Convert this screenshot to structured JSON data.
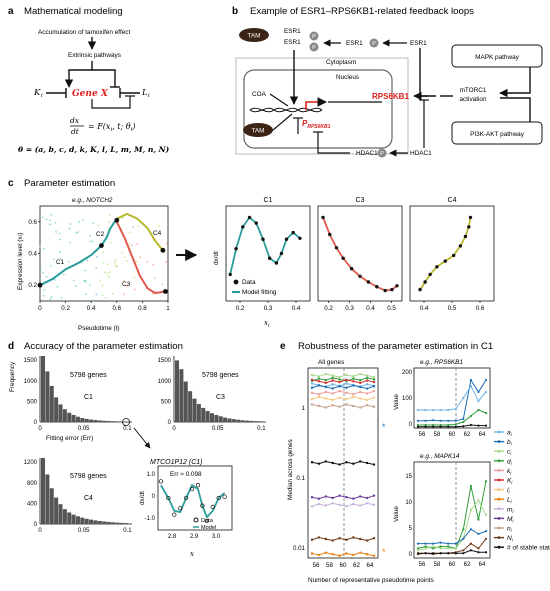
{
  "panels": {
    "a": {
      "letter": "a",
      "title": "Mathematical modeling",
      "top_label": "Accumulation of tamoxifen effect",
      "extrinsic": "Extrinsic pathways",
      "k_left": "K",
      "k_left_sub": "i",
      "l_right": "L",
      "l_right_sub": "i",
      "gene": "Gene X",
      "eq_lhs_num": "dx",
      "eq_lhs_den": "dt",
      "eq_rhs": "= F(x",
      "eq_rhs2": ", t; θ",
      "eq_rhs3": ")",
      "theta_line": "θ = (a, b, c, d, k, K, l, L, m, M, n, N)"
    },
    "b": {
      "letter": "b",
      "title": "Example of ESR1–RPS6KB1-related feedback loops",
      "tam": "TAM",
      "esr1": "ESR1",
      "p": "P",
      "cytoplasm": "Cytoplasm",
      "nucleus": "Nucleus",
      "coa": "COA",
      "prps6kb1": "P",
      "prps6kb1_sub": "RPS6KB1",
      "rps6kb1": "RPS6KB1",
      "hdac1": "HDAC1",
      "mapk": "MAPK pathway",
      "mtorc1a": "mTORC1",
      "mtorc1b": "activation",
      "pi3k": "PI3K-AKT pathway"
    },
    "c": {
      "letter": "c",
      "title": "Parameter estimation",
      "eg": "e.g., NOTCH2",
      "ylabel": "Expression level (x",
      "ylabel_sub": "i",
      "ylabel_end": ")",
      "xlabel": "Pseudotime (t)",
      "seg": [
        "C1",
        "C2",
        "C3",
        "C4"
      ],
      "xticks": [
        "0",
        "0.2",
        "0.4",
        "0.6",
        "0.8",
        "1"
      ],
      "yticks": [
        "0.2",
        "0.4",
        "0.6"
      ],
      "sub_titles": [
        "C1",
        "C3",
        "C4"
      ],
      "sub_ylabel": "dx/dt",
      "sub_xlabel": "x",
      "sub_xlabel_sub": "i",
      "c1_xticks": [
        "0.2",
        "0.3",
        "0.4"
      ],
      "c3_xticks": [
        "0.2",
        "0.3",
        "0.4",
        "0.5"
      ],
      "c4_xticks": [
        "0.4",
        "0.5",
        "0.6"
      ],
      "legend": [
        "Data",
        "Model fitting"
      ]
    },
    "d": {
      "letter": "d",
      "title": "Accuracy of the parameter estimation",
      "ylabel": "Frequency",
      "xlabel": "Fitting error (Err)",
      "n_genes": "5798 genes",
      "hist_titles": [
        "C1",
        "C3",
        "C4"
      ],
      "c1_yticks": [
        "0",
        "500",
        "1000",
        "1500"
      ],
      "c3_yticks": [
        "0",
        "500",
        "1000",
        "1500"
      ],
      "c4_yticks": [
        "0",
        "400",
        "800",
        "1200"
      ],
      "xticks": [
        "0",
        "0.05",
        "0.1"
      ],
      "inset_title": "MTCO1P12 (C1)",
      "inset_err": "Err ≈ 0.098",
      "inset_yticks": [
        "1.0",
        "0",
        "-1.0"
      ],
      "inset_xticks": [
        "2.8",
        "2.9",
        "3.0"
      ],
      "inset_legend": [
        "Data",
        "Model"
      ]
    },
    "e": {
      "letter": "e",
      "title": "Robustness of the parameter estimation in C1",
      "all_genes": "All genes",
      "ylabel": "Median across genes",
      "xlabel": "Number of representative pseudotime points",
      "yticks": [
        "1",
        "0.1",
        "0.01"
      ],
      "xticks": [
        "56",
        "58",
        "60",
        "62",
        "64"
      ],
      "eg1": "e.g., RPS6KB1",
      "eg2": "e.g., MAPK14",
      "value": "Value",
      "v1_yticks": [
        "0",
        "100",
        "200"
      ],
      "v2_yticks": [
        "0",
        "5",
        "10",
        "15"
      ],
      "legend": [
        "a",
        "b",
        "c",
        "d",
        "k",
        "K",
        "l",
        "L",
        "m",
        "M",
        "n",
        "N",
        "# of stable states"
      ],
      "legend_colors": [
        "#6fb6e6",
        "#1f6fb5",
        "#a8d98a",
        "#2f9e3a",
        "#f39c9b",
        "#d62a28",
        "#f7c97e",
        "#e87f0c",
        "#c6b0dc",
        "#6b3a9a",
        "#c9a38c",
        "#6b3b1a",
        "#111111"
      ]
    }
  },
  "chart_data": [
    {
      "type": "histogram",
      "title": "C1",
      "xlim": [
        0,
        0.1
      ],
      "ylim": [
        0,
        1500
      ],
      "bins": [
        1500,
        1150,
        820,
        560,
        400,
        290,
        210,
        160,
        120,
        90,
        70,
        55,
        45,
        36,
        28,
        22,
        18,
        14,
        11,
        9
      ],
      "xlabel": "Fitting error (Err)",
      "ylabel": "Frequency"
    },
    {
      "type": "histogram",
      "title": "C3",
      "xlim": [
        0,
        0.1
      ],
      "ylim": [
        0,
        1500
      ],
      "bins": [
        1400,
        1200,
        920,
        700,
        530,
        410,
        320,
        250,
        200,
        160,
        130,
        100,
        80,
        65,
        52,
        40,
        32,
        25,
        20,
        16
      ]
    },
    {
      "type": "histogram",
      "title": "C4",
      "xlim": [
        0,
        0.1
      ],
      "ylim": [
        0,
        1200
      ],
      "bins": [
        1250,
        900,
        650,
        480,
        360,
        270,
        210,
        170,
        140,
        115,
        95,
        80,
        66,
        55,
        46,
        38,
        31,
        25,
        20,
        16
      ]
    }
  ]
}
